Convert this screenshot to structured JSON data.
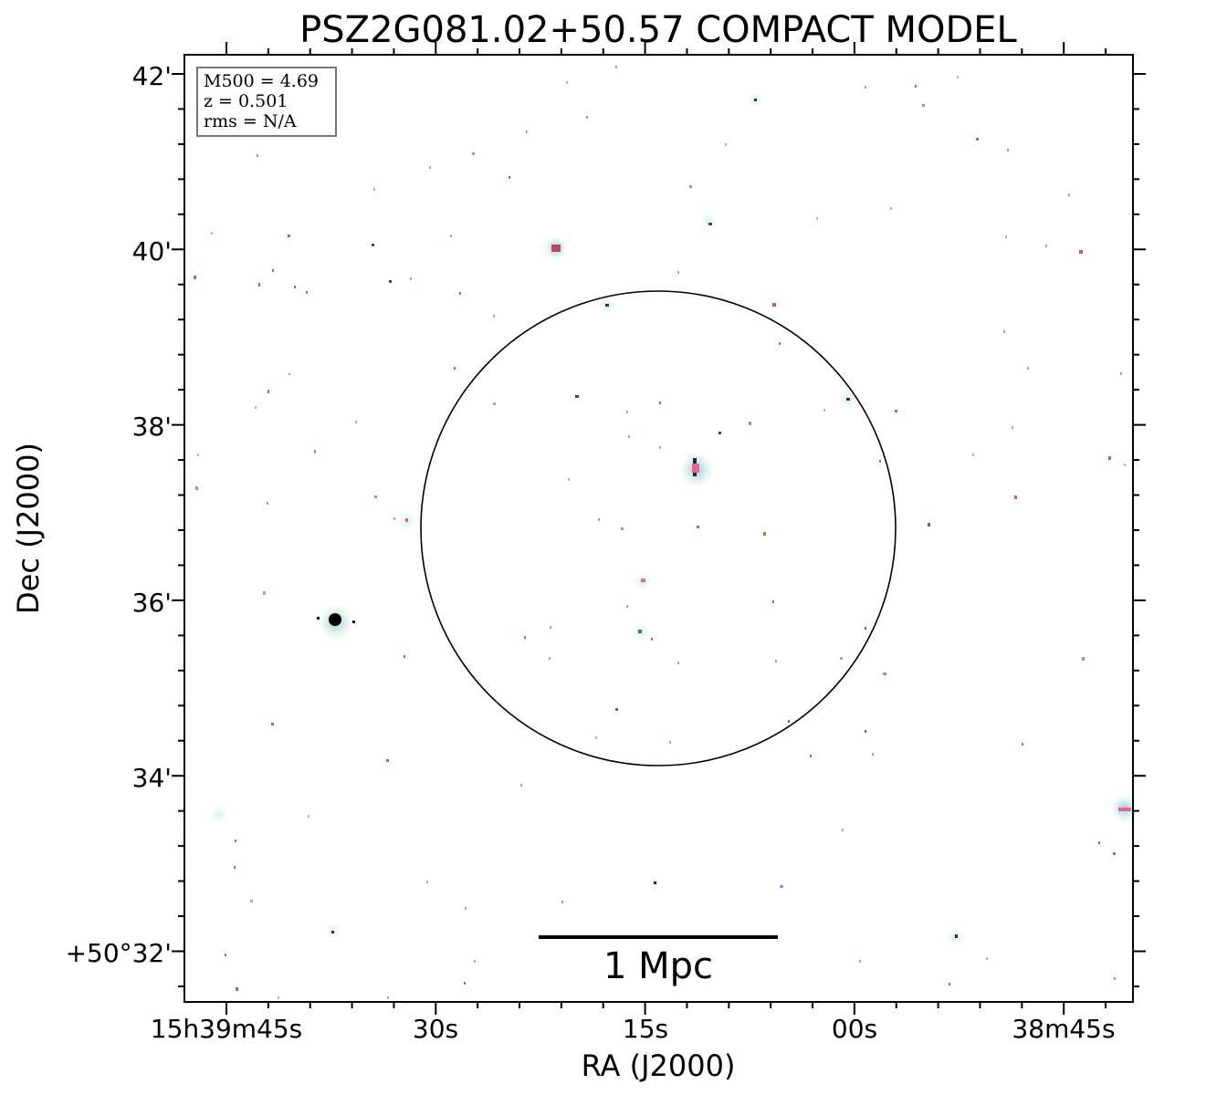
{
  "title": "PSZ2G081.02+50.57 COMPACT MODEL",
  "info_box": {
    "mass": "M500 = 4.69",
    "redshift": "z = 0.501",
    "rms": "rms = N/A"
  },
  "axes": {
    "xlabel": "RA (J2000)",
    "ylabel": "Dec (J2000)",
    "x_ticks": [
      "15h39m45s",
      "30s",
      "15s",
      "00s",
      "38m45s"
    ],
    "y_ticks": [
      "42'",
      "40'",
      "38'",
      "36'",
      "34'",
      "+50°32'"
    ]
  },
  "scale_bar": {
    "label": "1 Mpc"
  },
  "colors": {
    "frame": "#000000",
    "background": "#ffffff",
    "source_halo": "#c6e8e2",
    "source_core_pink": "#e0669e",
    "source_core_blue": "#8e8ee8"
  }
}
